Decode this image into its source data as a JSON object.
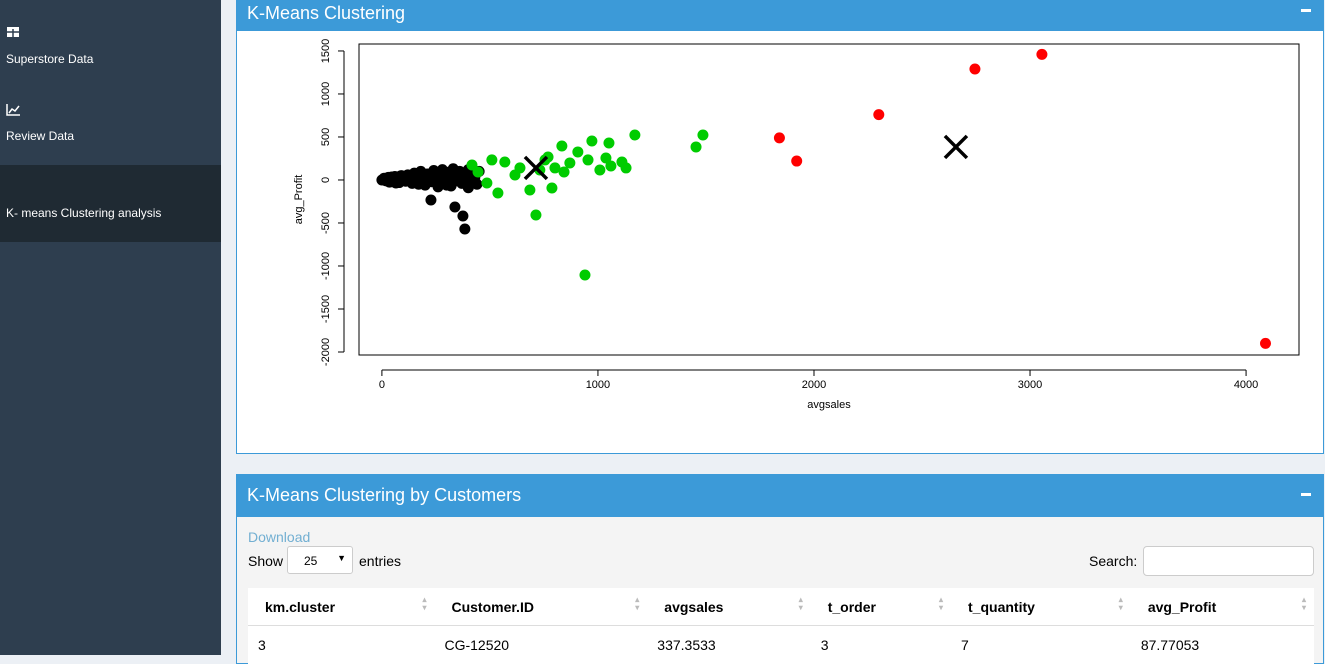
{
  "sidebar": {
    "items": [
      "Superstore Data",
      "Review Data",
      "K- means Clustering analysis"
    ]
  },
  "plot_box": {
    "title": "K-Means Clustering"
  },
  "chart_data": {
    "type": "scatter",
    "xlabel": "avgsales",
    "ylabel": "avg_Profit",
    "xlim": [
      -106,
      4245
    ],
    "ylim": [
      -2035,
      1581
    ],
    "xticks": [
      0,
      1000,
      2000,
      3000,
      4000
    ],
    "yticks": [
      -2000,
      -1500,
      -1000,
      -500,
      0,
      500,
      1000,
      1500
    ],
    "series": [
      {
        "color": "#000000",
        "x": [
          0,
          10,
          20,
          30,
          40,
          50,
          60,
          70,
          80,
          90,
          100,
          110,
          120,
          130,
          140,
          150,
          160,
          170,
          180,
          190,
          200,
          210,
          220,
          230,
          240,
          250,
          260,
          270,
          280,
          290,
          300,
          310,
          320,
          330,
          340,
          350,
          360,
          370,
          380,
          390,
          400,
          410,
          420,
          430,
          440,
          450,
          227,
          338,
          375,
          384,
          15,
          25,
          35,
          45,
          55,
          65,
          75,
          85,
          95,
          105,
          200,
          260,
          300,
          350,
          400
        ],
        "values": [
          0,
          20,
          -10,
          30,
          5,
          -20,
          40,
          10,
          -30,
          50,
          20,
          -15,
          60,
          0,
          -40,
          80,
          30,
          -50,
          100,
          10,
          -60,
          70,
          40,
          -20,
          110,
          0,
          -80,
          60,
          120,
          -30,
          90,
          20,
          -70,
          130,
          50,
          -10,
          100,
          -40,
          70,
          10,
          120,
          -20,
          80,
          30,
          -50,
          100,
          -233,
          -314,
          -419,
          -570,
          -5,
          15,
          -25,
          35,
          0,
          -35,
          25,
          45,
          -5,
          30,
          20,
          90,
          -60,
          40,
          -90
        ]
      },
      {
        "color": "#00cc00",
        "x": [
          445,
          509,
          569,
          639,
          685,
          713,
          769,
          787,
          801,
          833,
          843,
          907,
          940,
          972,
          1037,
          1051,
          1060,
          1111,
          1130,
          1171,
          1454,
          1486,
          537,
          486,
          417,
          616,
          731,
          870,
          954,
          1009,
          755
        ],
        "values": [
          93,
          233,
          209,
          140,
          -116,
          -407,
          267,
          -93,
          140,
          395,
          93,
          326,
          -1105,
          453,
          256,
          430,
          163,
          209,
          140,
          523,
          384,
          523,
          -151,
          -35,
          174,
          58,
          116,
          198,
          233,
          116,
          233
        ]
      },
      {
        "color": "#ff0000",
        "x": [
          1840,
          1920,
          2300,
          2745,
          3055,
          4090
        ],
        "values": [
          490,
          220,
          760,
          1290,
          1460,
          -1900
        ]
      },
      {
        "color": "#000000",
        "marker": "x",
        "x": [
          713,
          2657
        ],
        "values": [
          140,
          384
        ]
      }
    ]
  },
  "table_box": {
    "title": "K-Means Clustering by Customers",
    "download": "Download",
    "show": "Show",
    "length": "25",
    "entries": "entries",
    "search": "Search:"
  },
  "table": {
    "columns": [
      "km.cluster",
      "Customer.ID",
      "avgsales",
      "t_order",
      "t_quantity",
      "avg_Profit"
    ],
    "rows": [
      [
        3,
        "CG-12520",
        337.3533,
        3,
        7,
        87.77053
      ]
    ]
  }
}
